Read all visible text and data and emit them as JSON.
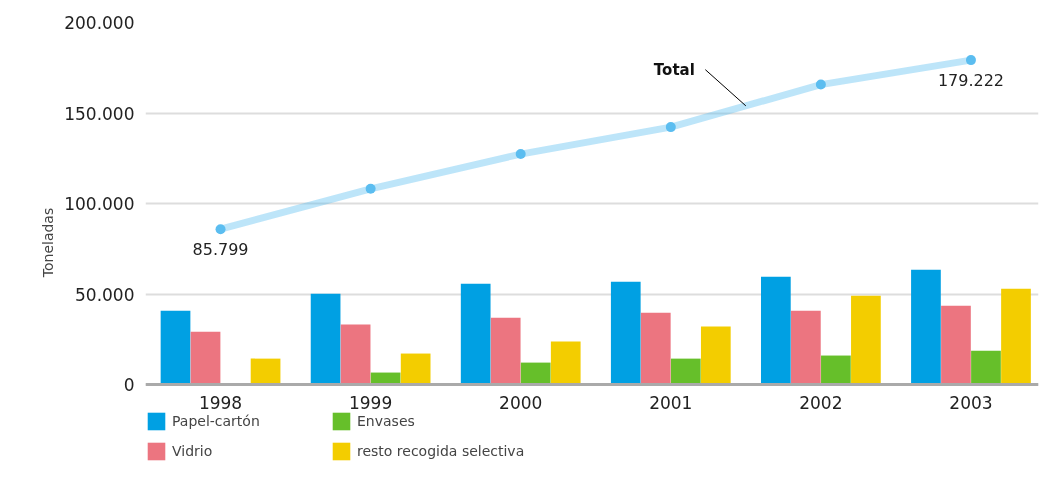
{
  "chart_data": {
    "type": "bar",
    "ylabel": "Toneladas",
    "categories": [
      "1998",
      "1999",
      "2000",
      "2001",
      "2002",
      "2003"
    ],
    "series": [
      {
        "name": "Papel-cartón",
        "color": "#00a0e3",
        "values": [
          40800,
          50100,
          55700,
          56800,
          59500,
          63400
        ]
      },
      {
        "name": "Vidrio",
        "color": "#ec7580",
        "values": [
          29200,
          33100,
          36900,
          39700,
          40800,
          43500
        ]
      },
      {
        "name": "Envases",
        "color": "#66bf2a",
        "values": [
          null,
          6600,
          12100,
          14300,
          16000,
          18700
        ]
      },
      {
        "name": "resto recogida selectiva",
        "color": "#f3cd00",
        "values": [
          14300,
          17100,
          23700,
          32000,
          49100,
          52900
        ]
      },
      {
        "name": "Total",
        "type": "line",
        "color": "#5bbdf0",
        "marker": "circle",
        "values": [
          85799,
          108100,
          127300,
          142200,
          165700,
          179222
        ],
        "value_labels": [
          "85.799",
          null,
          null,
          null,
          null,
          "179.222"
        ]
      }
    ],
    "ylim": [
      0,
      200000
    ],
    "yticks": [
      {
        "value": 0,
        "label": "0"
      },
      {
        "value": 50000,
        "label": "50.000"
      },
      {
        "value": 100000,
        "label": "100.000"
      },
      {
        "value": 150000,
        "label": "150.000"
      },
      {
        "value": 200000,
        "label": "200.000"
      }
    ],
    "grid": "y",
    "legend": "bottom"
  }
}
